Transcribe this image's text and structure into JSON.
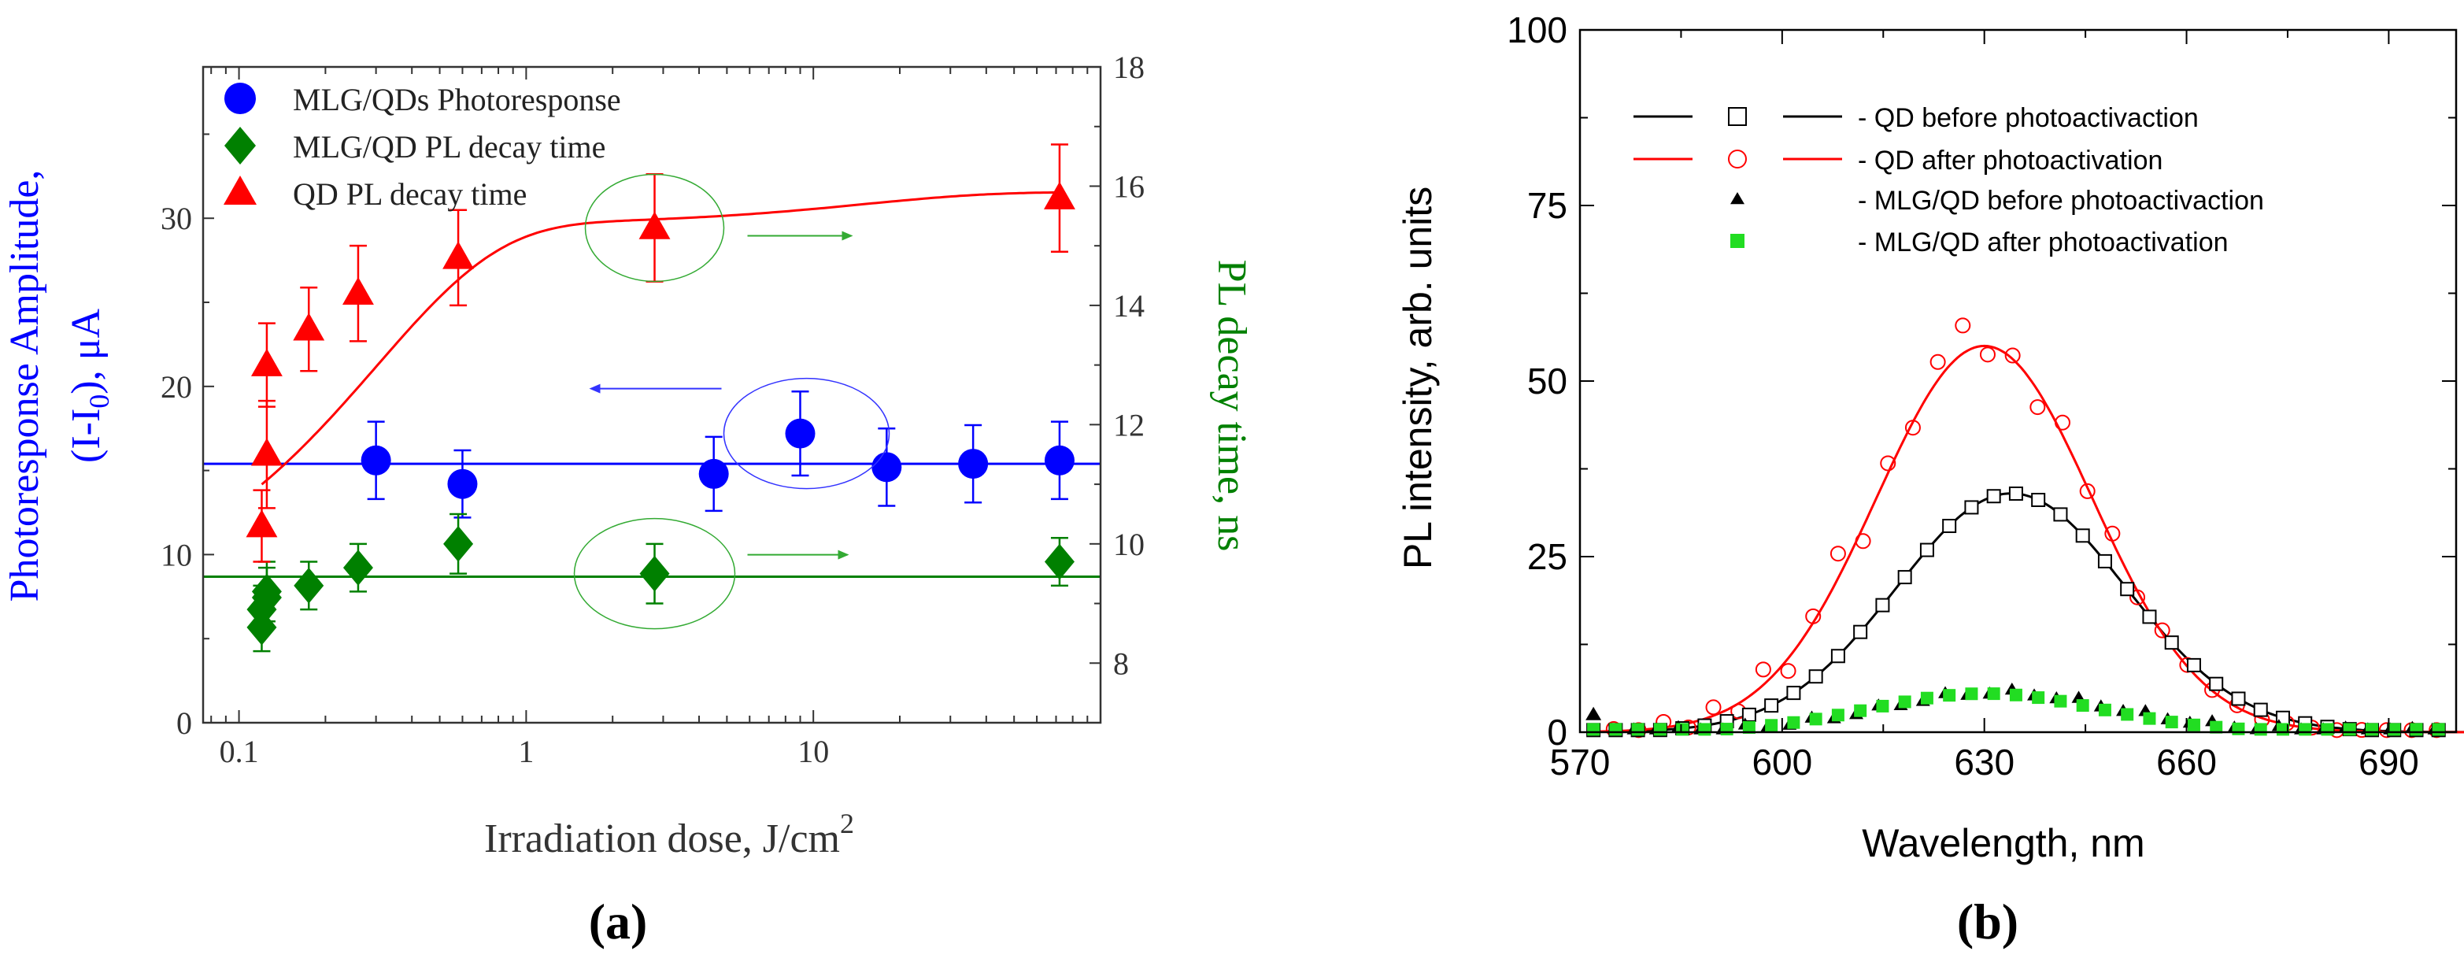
{
  "chart_data": [
    {
      "panel": "a",
      "type": "scatter",
      "panel_label": "(a)",
      "xlabel": "Irradiation dose, J/cm",
      "xlabel_sup": "2",
      "x_scale": "log",
      "xlim": [
        0.075,
        100
      ],
      "x_ticks": [
        0.1,
        1,
        10
      ],
      "x_tick_labels": [
        "0.1",
        "1",
        "10"
      ],
      "ylabel_left_line1": "Photoresponse Amplitude,",
      "ylabel_left_line2_a": "(I-I",
      "ylabel_left_line2_sub": "0",
      "ylabel_left_line2_b": "), μA",
      "ylim_left": [
        0,
        39
      ],
      "y_ticks_left": [
        0,
        10,
        20,
        30
      ],
      "y_tick_labels_left": [
        "0",
        "10",
        "20",
        "30"
      ],
      "ylabel_right": "PL decay time, ns",
      "ylim_right": [
        7.0,
        18.0
      ],
      "y_ticks_right": [
        8,
        10,
        12,
        14,
        16,
        18
      ],
      "y_tick_labels_right": [
        "8",
        "10",
        "12",
        "14",
        "16",
        "18"
      ],
      "legend_position": "top-left",
      "series": [
        {
          "name": "MLG/QDs Photoresponse",
          "axis": "left",
          "marker": "circle",
          "color": "#0000ff",
          "x": [
            0.3,
            0.6,
            4.5,
            9,
            18,
            36,
            72
          ],
          "y": [
            15.6,
            14.2,
            14.8,
            17.2,
            15.2,
            15.4,
            15.6
          ],
          "err": [
            2.3,
            2.0,
            2.2,
            2.5,
            2.3,
            2.3,
            2.3
          ],
          "fit_type": "constant",
          "fit_value": 15.4
        },
        {
          "name": "MLG/QD PL decay time",
          "axis": "right",
          "marker": "diamond",
          "color": "#008000",
          "x": [
            0.12,
            0.12,
            0.125,
            0.125,
            0.175,
            0.26,
            0.58,
            2.8,
            72
          ],
          "y": [
            8.6,
            8.9,
            9.1,
            9.2,
            9.3,
            9.6,
            10.0,
            9.5,
            9.7
          ],
          "err": [
            0.4,
            0.4,
            0.5,
            0.5,
            0.4,
            0.4,
            0.5,
            0.5,
            0.4
          ],
          "fit_type": "constant",
          "fit_value": 9.45
        },
        {
          "name": "QD PL decay time",
          "axis": "right",
          "marker": "triangle",
          "color": "#ff0000",
          "x": [
            0.12,
            0.125,
            0.125,
            0.175,
            0.26,
            0.58,
            2.8,
            72
          ],
          "y": [
            10.3,
            11.5,
            13.0,
            13.6,
            14.2,
            14.8,
            15.3,
            15.8
          ],
          "err": [
            0.6,
            0.9,
            0.7,
            0.7,
            0.8,
            0.8,
            0.9,
            0.9
          ],
          "fit_type": "saturating",
          "fit_value": 15.9
        }
      ],
      "annotations": [
        "ellipse around red point at ~3 J/cm2 with arrow pointing right",
        "ellipse around blue point at ~9 J/cm2 with arrow pointing left",
        "ellipse around green point at ~3 J/cm2 with arrow pointing right"
      ]
    },
    {
      "panel": "b",
      "type": "line",
      "panel_label": "(b)",
      "xlabel": "Wavelength, nm",
      "ylabel": "PL intensity, arb. units",
      "xlim": [
        570,
        700
      ],
      "ylim": [
        0,
        100
      ],
      "x_ticks": [
        570,
        600,
        630,
        660,
        690
      ],
      "y_ticks": [
        0,
        25,
        50,
        75,
        100
      ],
      "legend_position": "top",
      "series": [
        {
          "name": "- QD before photoactivaction",
          "color": "#000000",
          "marker": "open-square",
          "peak": 634,
          "amplitude": 34,
          "sigma": 17
        },
        {
          "name": "- QD after photoactivation",
          "color": "#ff0000",
          "marker": "open-circle",
          "peak": 630,
          "amplitude": 55,
          "sigma": 16
        },
        {
          "name": "- MLG/QD before photoactivaction",
          "color": "#000000",
          "marker": "filled-triangle",
          "peak": 632,
          "amplitude": 5.5,
          "sigma": 17
        },
        {
          "name": "- MLG/QD after photoactivation",
          "color": "#22dd22",
          "marker": "filled-square",
          "peak": 630,
          "amplitude": 5.5,
          "sigma": 17
        }
      ]
    }
  ]
}
